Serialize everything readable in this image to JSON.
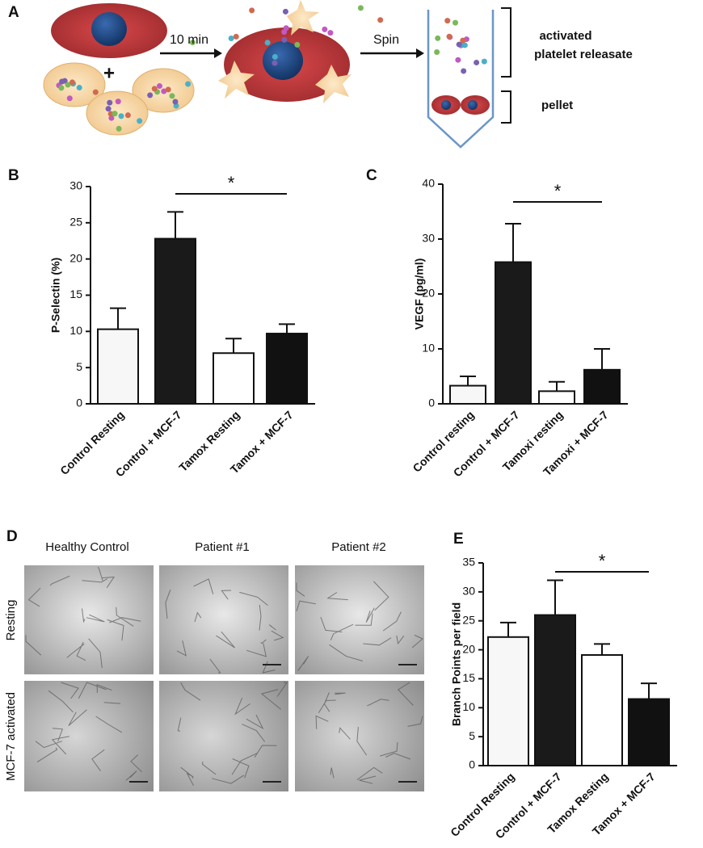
{
  "panel_labels": [
    "A",
    "B",
    "C",
    "D",
    "E"
  ],
  "diagram": {
    "plus": "+",
    "step1": "10 min",
    "step2": "Spin",
    "label1": "activated",
    "label2": "platelet releasate",
    "label3": "pellet"
  },
  "panel_d": {
    "columns": [
      "Healthy Control",
      "Patient #1",
      "Patient #2"
    ],
    "rows": [
      "Resting",
      "MCF-7 activated"
    ]
  },
  "chart_data": [
    {
      "type": "bar",
      "ylabel": "P-Selectin (%)",
      "annotation": "*",
      "categories": [
        "Control Resting",
        "Control + MCF-7",
        "Tamox Resting",
        "Tamox + MCF-7"
      ],
      "values": [
        10.3,
        22.8,
        7,
        9.7
      ],
      "errors": [
        2.9,
        3.7,
        2,
        1.3
      ],
      "colors": [
        "#f7f7f7",
        "#1a1a1a",
        "#ffffff",
        "#111111"
      ],
      "ylim": [
        0,
        30
      ],
      "yticks": [
        0,
        5,
        10,
        15,
        20,
        25,
        30
      ]
    },
    {
      "type": "bar",
      "ylabel": "VEGF (pg/ml)",
      "annotation": "*",
      "categories": [
        "Control resting",
        "Control + MCF-7",
        "Tamoxi resting",
        "Tamoxi + MCF-7"
      ],
      "values": [
        3.3,
        25.8,
        2.3,
        6.2
      ],
      "errors": [
        1.7,
        7,
        1.7,
        3.8
      ],
      "colors": [
        "#f7f7f7",
        "#1a1a1a",
        "#ffffff",
        "#111111"
      ],
      "ylim": [
        0,
        40
      ],
      "yticks": [
        0,
        10,
        20,
        30,
        40
      ]
    },
    {
      "type": "bar",
      "ylabel": "Branch Points per field",
      "annotation": "*",
      "categories": [
        "Control Resting",
        "Control + MCF-7",
        "Tamox Resting",
        "Tamox + MCF-7"
      ],
      "values": [
        22.2,
        26,
        19.1,
        11.5
      ],
      "errors": [
        2.5,
        6,
        1.9,
        2.7
      ],
      "colors": [
        "#f7f7f7",
        "#1a1a1a",
        "#ffffff",
        "#111111"
      ],
      "ylim": [
        0,
        35
      ],
      "yticks": [
        0,
        5,
        10,
        15,
        20,
        25,
        30,
        35
      ]
    }
  ]
}
